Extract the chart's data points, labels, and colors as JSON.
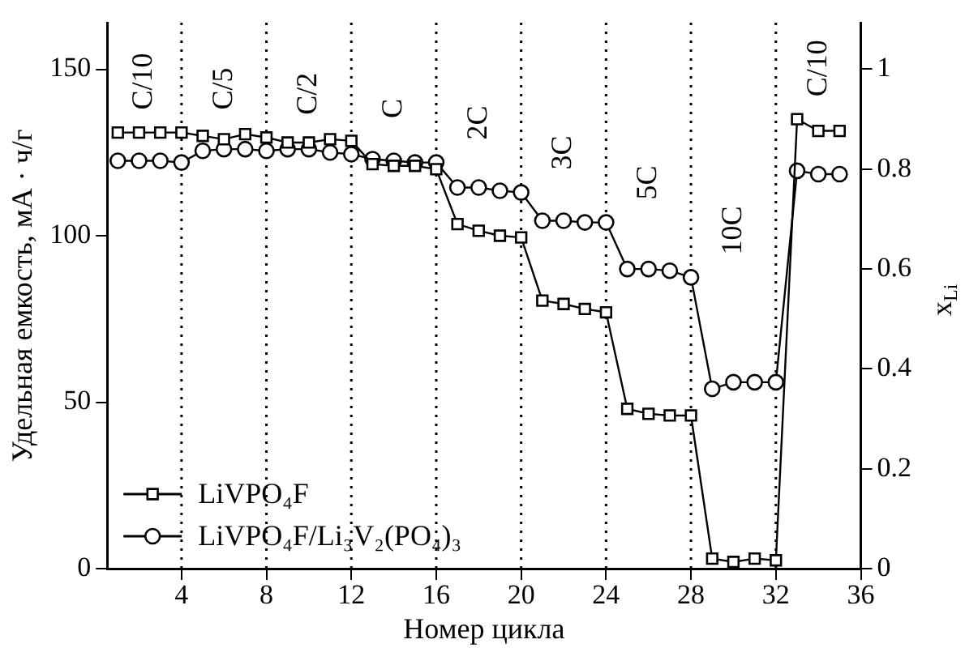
{
  "chart_data": {
    "type": "line",
    "xlabel": "Номер цикла",
    "ylabel": "Удельная емкость, мА · ч/г",
    "y2label": "x$_{Li}$",
    "x": [
      1,
      2,
      3,
      4,
      5,
      6,
      7,
      8,
      9,
      10,
      11,
      12,
      13,
      14,
      15,
      16,
      17,
      18,
      19,
      20,
      21,
      22,
      23,
      24,
      25,
      26,
      27,
      28,
      29,
      30,
      31,
      32,
      33,
      34,
      35
    ],
    "series": [
      {
        "name": "LiVPO₄F",
        "color": "#000000",
        "marker": "square",
        "values": [
          131,
          131,
          131,
          131,
          130,
          129,
          130.5,
          129.5,
          128,
          128,
          129,
          128.5,
          121.5,
          121,
          121,
          120,
          103.5,
          101.5,
          100,
          99.5,
          80.5,
          79.5,
          78,
          77,
          48,
          46.5,
          46,
          46,
          3,
          2,
          3,
          2.5,
          135,
          131.5,
          131.5
        ]
      },
      {
        "name": "LiVPO₄F/Li₃V₂(PO₄)₃",
        "color": "#000000",
        "marker": "circle",
        "values": [
          122.5,
          122.5,
          122.5,
          122,
          125.5,
          126,
          126,
          125.5,
          126,
          126,
          125,
          124.5,
          123,
          122.5,
          122,
          122,
          114.5,
          114.5,
          113.5,
          113,
          104.5,
          104.5,
          104,
          104,
          90,
          90,
          89.5,
          87.5,
          54,
          56,
          56,
          56,
          119.5,
          118.5,
          118.5
        ]
      }
    ],
    "xlim": [
      0.5,
      36
    ],
    "xticks": [
      4,
      8,
      12,
      16,
      20,
      24,
      28,
      32,
      36
    ],
    "ylim": [
      0,
      164
    ],
    "yticks": [
      0,
      50,
      100,
      150
    ],
    "y2lim": [
      0,
      1.093
    ],
    "y2ticks": [
      0,
      0.2,
      0.4,
      0.6,
      0.8,
      1.0
    ],
    "ref_lines": [
      {
        "axis": "x",
        "value": 4,
        "line_style": "dotted"
      },
      {
        "axis": "x",
        "value": 8,
        "line_style": "dotted"
      },
      {
        "axis": "x",
        "value": 12,
        "line_style": "dotted"
      },
      {
        "axis": "x",
        "value": 16,
        "line_style": "dotted"
      },
      {
        "axis": "x",
        "value": 20,
        "line_style": "dotted"
      },
      {
        "axis": "x",
        "value": 24,
        "line_style": "dotted"
      },
      {
        "axis": "x",
        "value": 28,
        "line_style": "dotted"
      },
      {
        "axis": "x",
        "value": 32,
        "line_style": "dotted"
      }
    ],
    "annotations": [
      "C/10",
      "C/5",
      "C/2",
      "C",
      "2C",
      "3C",
      "5C",
      "10C",
      "C/10"
    ],
    "legend": "bottom left",
    "grid": false
  }
}
